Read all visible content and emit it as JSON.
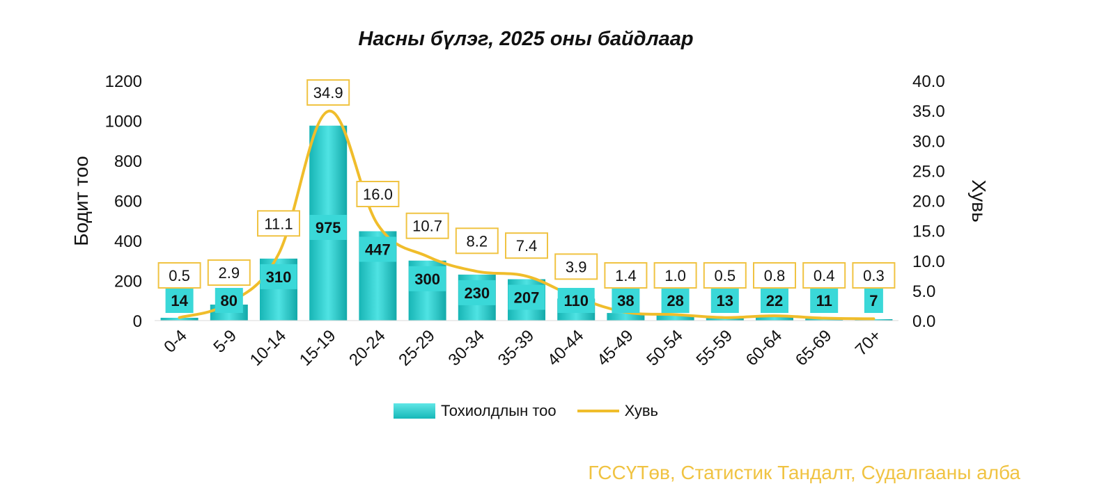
{
  "chart_data": {
    "type": "bar",
    "title": "Насны бүлэг, 2025 оны байдлаар",
    "categories": [
      "0-4",
      "5-9",
      "10-14",
      "15-19",
      "20-24",
      "25-29",
      "30-34",
      "35-39",
      "40-44",
      "45-49",
      "50-54",
      "55-59",
      "60-64",
      "65-69",
      "70+"
    ],
    "series": [
      {
        "name": "Тохиолдлын тоо",
        "type": "bar",
        "axis": "left",
        "values": [
          14,
          80,
          310,
          975,
          447,
          300,
          230,
          207,
          110,
          38,
          28,
          13,
          22,
          11,
          7
        ]
      },
      {
        "name": "Хувь",
        "type": "line",
        "axis": "right",
        "values": [
          0.5,
          2.9,
          11.1,
          34.9,
          16.0,
          10.7,
          8.2,
          7.4,
          3.9,
          1.4,
          1.0,
          0.5,
          0.8,
          0.4,
          0.3
        ]
      }
    ],
    "ylabel": "Бодит тоо",
    "y2label": "Хувь",
    "ylim": [
      0,
      1200
    ],
    "y2lim": [
      0,
      40
    ],
    "yticks": [
      "0",
      "200",
      "400",
      "600",
      "800",
      "1000",
      "1200"
    ],
    "y2ticks": [
      "0.0",
      "5.0",
      "10.0",
      "15.0",
      "20.0",
      "25.0",
      "30.0",
      "35.0",
      "40.0"
    ],
    "legend_position": "bottom",
    "grid": false,
    "colors": {
      "bar": "#20c7c7",
      "bar_light": "#5fe6e6",
      "line": "#f0bd2b",
      "label_box_border": "#f0c342"
    }
  },
  "source": "ГССҮТөв, Статистик Тандалт, Судалгааны алба"
}
